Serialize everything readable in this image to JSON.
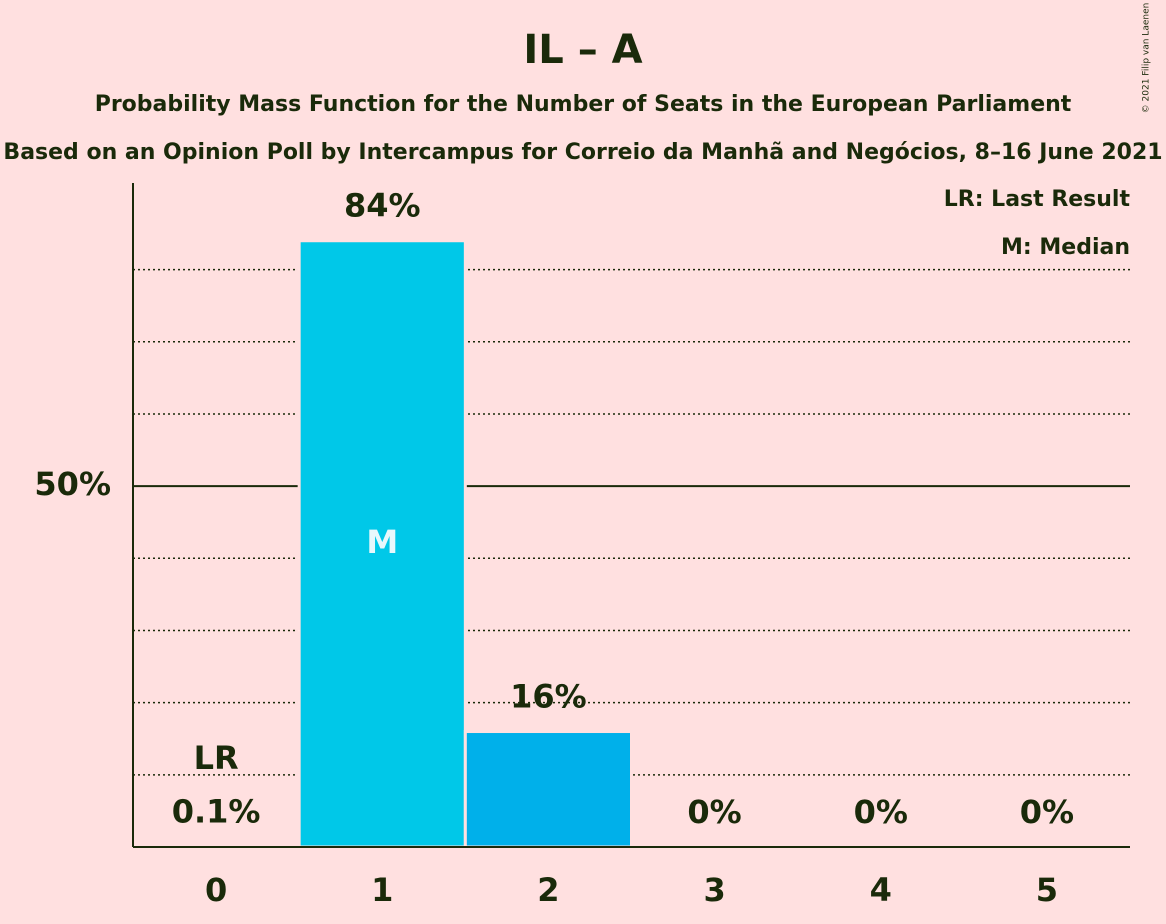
{
  "chart_data": {
    "type": "bar",
    "title": "IL – A",
    "subtitle": "Probability Mass Function for the Number of Seats in the European Parliament",
    "subtitle2": "Based on an Opinion Poll by Intercampus for Correio da Manhã and Negócios, 8–16 June 2021",
    "categories": [
      "0",
      "1",
      "2",
      "3",
      "4",
      "5"
    ],
    "values": [
      0.1,
      84,
      16,
      0,
      0,
      0
    ],
    "value_labels": [
      "0.1%",
      "84%",
      "16%",
      "0%",
      "0%",
      "0%"
    ],
    "colors": [
      "#00c8e8",
      "#00c8e8",
      "#00b0ea",
      "#00b0ea",
      "#00b0ea",
      "#00b0ea"
    ],
    "ylim": [
      0,
      92
    ],
    "yticks": [
      {
        "value": 50,
        "label": "50%"
      }
    ],
    "minor_gridlines": [
      10,
      20,
      30,
      40,
      60,
      70,
      80
    ],
    "last_result": {
      "category": "0",
      "label": "LR"
    },
    "median": {
      "category": "1",
      "label": "M"
    },
    "legend": [
      "LR: Last Result",
      "M: Median"
    ],
    "credit": "© 2021 Filip van Laenen"
  }
}
